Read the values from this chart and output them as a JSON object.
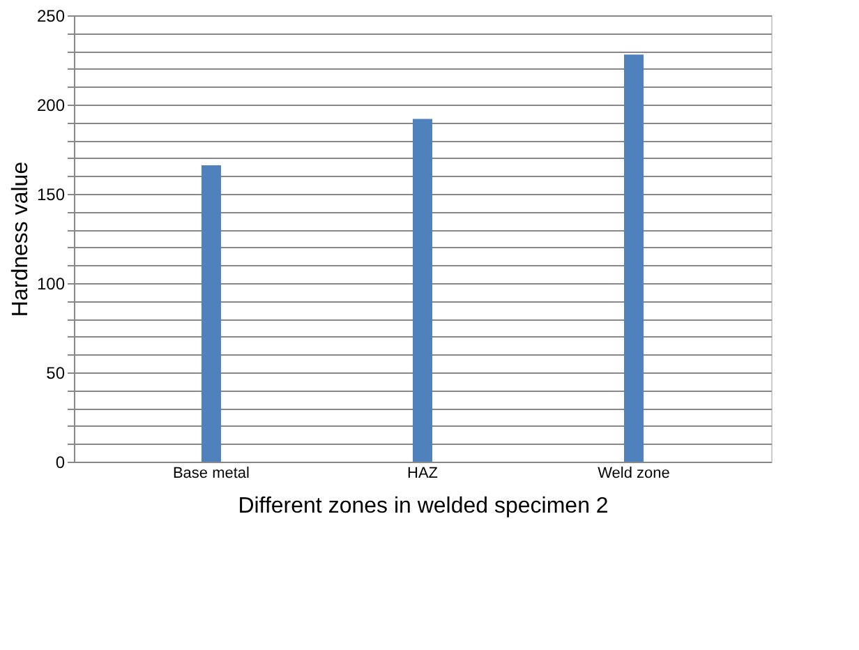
{
  "chart_data": {
    "type": "bar",
    "xlabel": "Different zones in welded specimen 2",
    "ylabel": "Hardness value",
    "categories": [
      "Base metal",
      "HAZ",
      "Weld zone"
    ],
    "values": [
      166,
      192,
      228
    ],
    "color": "#4f81bd",
    "ylim": [
      0,
      250
    ],
    "yticks": [
      0,
      {
        "value": 10,
        "label": null
      },
      {
        "value": 20,
        "label": null
      },
      {
        "value": 30,
        "label": null
      },
      {
        "value": 40,
        "label": null
      },
      50,
      {
        "value": 60,
        "label": null
      },
      {
        "value": 70,
        "label": null
      },
      {
        "value": 80,
        "label": null
      },
      {
        "value": 90,
        "label": null
      },
      100,
      {
        "value": 110,
        "label": null
      },
      {
        "value": 120,
        "label": null
      },
      {
        "value": 130,
        "label": null
      },
      {
        "value": 140,
        "label": null
      },
      150,
      {
        "value": 160,
        "label": null
      },
      {
        "value": 170,
        "label": null
      },
      {
        "value": 180,
        "label": null
      },
      {
        "value": 190,
        "label": null
      },
      200,
      {
        "value": 210,
        "label": null
      },
      {
        "value": 220,
        "label": null
      },
      {
        "value": 230,
        "label": null
      },
      {
        "value": 240,
        "label": null
      },
      250
    ],
    "grid": "y"
  }
}
